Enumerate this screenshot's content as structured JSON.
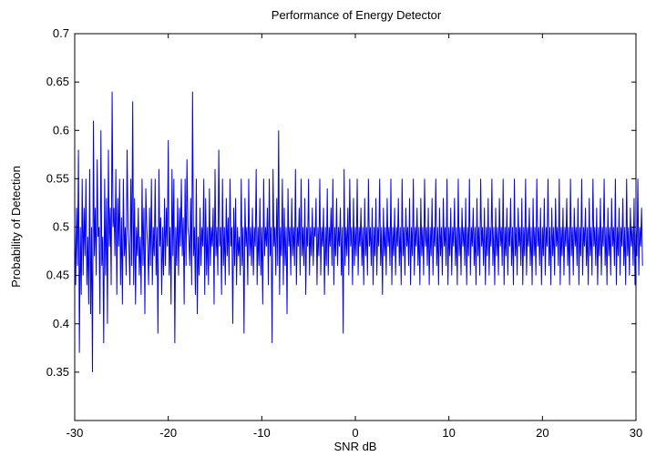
{
  "chart_data": {
    "type": "line",
    "title": "Performance of Energy Detector",
    "xlabel": "SNR dB",
    "ylabel": "Probability of Detection",
    "xlim": [
      -30,
      30
    ],
    "ylim": [
      0.3,
      0.7
    ],
    "xticks": [
      "-30",
      "-20",
      "-10",
      "0",
      "10",
      "20",
      "30"
    ],
    "yticks": [
      "0.35",
      "0.4",
      "0.45",
      "0.5",
      "0.55",
      "0.6",
      "0.65",
      "0.7"
    ],
    "grid": false,
    "series": [
      {
        "color": "#0000ff",
        "x_start": -30,
        "x_step": 0.1,
        "values": [
          0.5,
          0.44,
          0.52,
          0.46,
          0.58,
          0.37,
          0.5,
          0.43,
          0.55,
          0.45,
          0.52,
          0.47,
          0.55,
          0.44,
          0.49,
          0.42,
          0.56,
          0.41,
          0.5,
          0.35,
          0.61,
          0.47,
          0.52,
          0.45,
          0.57,
          0.49,
          0.5,
          0.41,
          0.6,
          0.46,
          0.49,
          0.38,
          0.55,
          0.45,
          0.53,
          0.4,
          0.58,
          0.48,
          0.52,
          0.44,
          0.64,
          0.5,
          0.52,
          0.47,
          0.56,
          0.43,
          0.53,
          0.48,
          0.55,
          0.44,
          0.51,
          0.42,
          0.55,
          0.47,
          0.5,
          0.45,
          0.58,
          0.5,
          0.48,
          0.44,
          0.55,
          0.46,
          0.63,
          0.44,
          0.53,
          0.42,
          0.5,
          0.47,
          0.52,
          0.45,
          0.49,
          0.43,
          0.55,
          0.46,
          0.52,
          0.41,
          0.54,
          0.5,
          0.48,
          0.44,
          0.52,
          0.46,
          0.55,
          0.44,
          0.5,
          0.47,
          0.55,
          0.45,
          0.5,
          0.39,
          0.56,
          0.48,
          0.51,
          0.43,
          0.5,
          0.45,
          0.53,
          0.46,
          0.52,
          0.48,
          0.59,
          0.45,
          0.5,
          0.42,
          0.56,
          0.47,
          0.55,
          0.38,
          0.5,
          0.46,
          0.53,
          0.45,
          0.52,
          0.48,
          0.55,
          0.47,
          0.51,
          0.42,
          0.55,
          0.46,
          0.57,
          0.5,
          0.49,
          0.46,
          0.53,
          0.44,
          0.64,
          0.47,
          0.5,
          0.43,
          0.55,
          0.41,
          0.49,
          0.45,
          0.52,
          0.46,
          0.5,
          0.48,
          0.55,
          0.43,
          0.53,
          0.45,
          0.5,
          0.44,
          0.54,
          0.46,
          0.5,
          0.48,
          0.52,
          0.42,
          0.56,
          0.47,
          0.5,
          0.45,
          0.58,
          0.48,
          0.5,
          0.43,
          0.55,
          0.46,
          0.5,
          0.44,
          0.53,
          0.47,
          0.51,
          0.45,
          0.55,
          0.48,
          0.5,
          0.4,
          0.52,
          0.46,
          0.53,
          0.44,
          0.5,
          0.47,
          0.49,
          0.45,
          0.55,
          0.46,
          0.5,
          0.39,
          0.53,
          0.48,
          0.5,
          0.44,
          0.55,
          0.47,
          0.5,
          0.46,
          0.52,
          0.45,
          0.5,
          0.48,
          0.56,
          0.44,
          0.5,
          0.46,
          0.53,
          0.45,
          0.5,
          0.42,
          0.55,
          0.47,
          0.5,
          0.48,
          0.52,
          0.44,
          0.55,
          0.47,
          0.5,
          0.38,
          0.56,
          0.48,
          0.5,
          0.45,
          0.53,
          0.46,
          0.6,
          0.43,
          0.5,
          0.47,
          0.55,
          0.44,
          0.52,
          0.46,
          0.5,
          0.41,
          0.54,
          0.48,
          0.5,
          0.45,
          0.53,
          0.47,
          0.5,
          0.46,
          0.56,
          0.44,
          0.5,
          0.48,
          0.52,
          0.45,
          0.55,
          0.47,
          0.5,
          0.46,
          0.53,
          0.43,
          0.5,
          0.48,
          0.55,
          0.45,
          0.5,
          0.47,
          0.52,
          0.46,
          0.5,
          0.49,
          0.53,
          0.44,
          0.5,
          0.47,
          0.55,
          0.45,
          0.5,
          0.48,
          0.52,
          0.43,
          0.5,
          0.46,
          0.54,
          0.45,
          0.5,
          0.48,
          0.52,
          0.46,
          0.55,
          0.44,
          0.5,
          0.47,
          0.53,
          0.46,
          0.5,
          0.48,
          0.52,
          0.45,
          0.5,
          0.39,
          0.56,
          0.46,
          0.5,
          0.47,
          0.52,
          0.45,
          0.55,
          0.48,
          0.5,
          0.44,
          0.53,
          0.46,
          0.5,
          0.47,
          0.55,
          0.45,
          0.5,
          0.48,
          0.52,
          0.46,
          0.5,
          0.44,
          0.53,
          0.47,
          0.5,
          0.45,
          0.55,
          0.48,
          0.5,
          0.46,
          0.52,
          0.44,
          0.5,
          0.47,
          0.53,
          0.45,
          0.5,
          0.48,
          0.55,
          0.46,
          0.5,
          0.43,
          0.52,
          0.47,
          0.5,
          0.45,
          0.53,
          0.48,
          0.5,
          0.46,
          0.55,
          0.44,
          0.5,
          0.47,
          0.52,
          0.45,
          0.5,
          0.48,
          0.53,
          0.46,
          0.5,
          0.44,
          0.55,
          0.47,
          0.5,
          0.45,
          0.52,
          0.48,
          0.5,
          0.46,
          0.53,
          0.44,
          0.5,
          0.47,
          0.55,
          0.45,
          0.5,
          0.48,
          0.52,
          0.46,
          0.5,
          0.44,
          0.53,
          0.47,
          0.5,
          0.45,
          0.55,
          0.48,
          0.5,
          0.46,
          0.52,
          0.44,
          0.5,
          0.47,
          0.53,
          0.45,
          0.5,
          0.48,
          0.55,
          0.46,
          0.5,
          0.44,
          0.52,
          0.47,
          0.5,
          0.45,
          0.53,
          0.48,
          0.5,
          0.46,
          0.55,
          0.44,
          0.5,
          0.47,
          0.52,
          0.45,
          0.5,
          0.48,
          0.53,
          0.46,
          0.5,
          0.44,
          0.55,
          0.47,
          0.5,
          0.45,
          0.52,
          0.48,
          0.5,
          0.46,
          0.53,
          0.44,
          0.5,
          0.47,
          0.55,
          0.45,
          0.5,
          0.48,
          0.52,
          0.46,
          0.5,
          0.44,
          0.53,
          0.47,
          0.5,
          0.45,
          0.55,
          0.48,
          0.5,
          0.46,
          0.52,
          0.44,
          0.5,
          0.47,
          0.53,
          0.45,
          0.5,
          0.48,
          0.55,
          0.46,
          0.5,
          0.44,
          0.52,
          0.47,
          0.5,
          0.45,
          0.53,
          0.48,
          0.5,
          0.46,
          0.55,
          0.44,
          0.5,
          0.47,
          0.52,
          0.45,
          0.5,
          0.48,
          0.53,
          0.46,
          0.5,
          0.44,
          0.55,
          0.47,
          0.5,
          0.45,
          0.52,
          0.48,
          0.5,
          0.46,
          0.53,
          0.44,
          0.5,
          0.47,
          0.55,
          0.45,
          0.5,
          0.48,
          0.52,
          0.46,
          0.5,
          0.44,
          0.53,
          0.47,
          0.5,
          0.45,
          0.55,
          0.48,
          0.5,
          0.46,
          0.52,
          0.44,
          0.5,
          0.47,
          0.53,
          0.45,
          0.5,
          0.48,
          0.55,
          0.46,
          0.5,
          0.44,
          0.52,
          0.47,
          0.5,
          0.45,
          0.53,
          0.48,
          0.5,
          0.46,
          0.55,
          0.44,
          0.5,
          0.47,
          0.52,
          0.45,
          0.5,
          0.48,
          0.53,
          0.46,
          0.5,
          0.44,
          0.55,
          0.47,
          0.5,
          0.45,
          0.52,
          0.48,
          0.5,
          0.46,
          0.53,
          0.44,
          0.5,
          0.47,
          0.55,
          0.45,
          0.5,
          0.48,
          0.52,
          0.46,
          0.5,
          0.44,
          0.53,
          0.47,
          0.5,
          0.45,
          0.55,
          0.48,
          0.5,
          0.46,
          0.52,
          0.44,
          0.5,
          0.47,
          0.53,
          0.45,
          0.5,
          0.48,
          0.55,
          0.46,
          0.5,
          0.44,
          0.52,
          0.47,
          0.5,
          0.45,
          0.53,
          0.48,
          0.5,
          0.46,
          0.55,
          0.44,
          0.5,
          0.47,
          0.52,
          0.45,
          0.5,
          0.48,
          0.53,
          0.46,
          0.5,
          0.44,
          0.55,
          0.47,
          0.5,
          0.45,
          0.52,
          0.48,
          0.5,
          0.46,
          0.53,
          0.44,
          0.5,
          0.47,
          0.55,
          0.45,
          0.5,
          0.48,
          0.52,
          0.46
        ]
      }
    ]
  }
}
